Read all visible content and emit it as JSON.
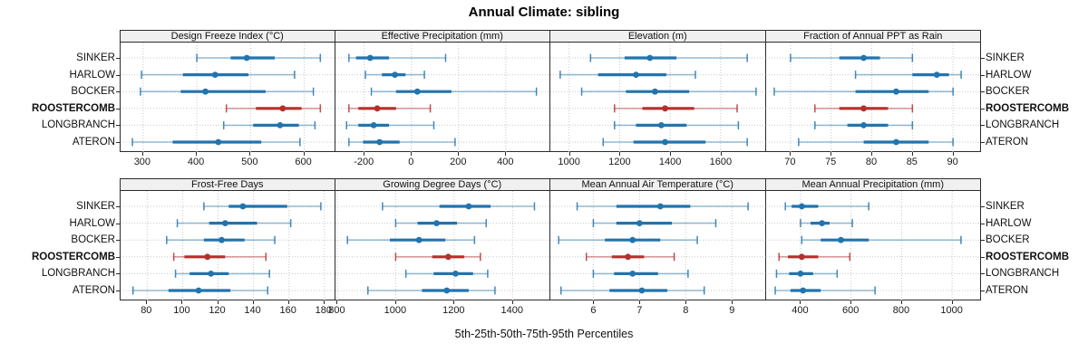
{
  "title": "Annual Climate: sibling",
  "caption": "5th-25th-50th-75th-95th Percentiles",
  "sites": [
    "SINKER",
    "HARLOW",
    "BOCKER",
    "ROOSTERCOMB",
    "LONGBRANCH",
    "ATERON"
  ],
  "highlight_site": "ROOSTERCOMB",
  "percentile_labels": [
    "5th",
    "25th",
    "50th",
    "75th",
    "95th"
  ],
  "colors": {
    "series": "#2274ad",
    "highlight": "#b5302d",
    "strip_bg": "#f0f0f0",
    "border": "#2b2b2b",
    "grid": "#c9c9c9",
    "tick_text": "#1a1a1a"
  },
  "chart_data": {
    "type": "dotplot-intervals",
    "note": "Each series entry is [5th,25th,50th,75th,95th] percentiles, rows ordered as sites[]",
    "legend_position": "none",
    "grid": "dotted",
    "panels": [
      {
        "row": 0,
        "col": 0,
        "title": "Design Freeze Index (°C)",
        "xlim": [
          258,
          659
        ],
        "ticks": [
          300,
          400,
          500,
          600
        ],
        "series": [
          [
            400,
            463,
            493,
            545,
            630
          ],
          [
            297,
            374,
            434,
            496,
            582
          ],
          [
            295,
            370,
            416,
            528,
            617
          ],
          [
            455,
            510,
            560,
            595,
            630
          ],
          [
            450,
            505,
            555,
            590,
            620
          ],
          [
            280,
            355,
            440,
            520,
            592
          ]
        ]
      },
      {
        "row": 0,
        "col": 1,
        "title": "Effective Precipitation (mm)",
        "xlim": [
          -322,
          591
        ],
        "ticks": [
          -200,
          0,
          200,
          400
        ],
        "series": [
          [
            -265,
            -235,
            -175,
            -95,
            145
          ],
          [
            -195,
            -125,
            -70,
            -25,
            55
          ],
          [
            -170,
            -65,
            25,
            170,
            530
          ],
          [
            -265,
            -225,
            -145,
            -65,
            80
          ],
          [
            -275,
            -225,
            -160,
            -95,
            95
          ],
          [
            -265,
            -205,
            -135,
            -50,
            185
          ]
        ]
      },
      {
        "row": 0,
        "col": 2,
        "title": "Elevation (m)",
        "xlim": [
          926,
          1778
        ],
        "ticks": [
          1000,
          1200,
          1400,
          1600
        ],
        "series": [
          [
            1085,
            1220,
            1320,
            1425,
            1705
          ],
          [
            965,
            1115,
            1265,
            1385,
            1500
          ],
          [
            1050,
            1225,
            1340,
            1475,
            1740
          ],
          [
            1180,
            1290,
            1380,
            1495,
            1665
          ],
          [
            1180,
            1265,
            1365,
            1465,
            1670
          ],
          [
            1135,
            1255,
            1380,
            1540,
            1705
          ]
        ]
      },
      {
        "row": 0,
        "col": 3,
        "title": "Fraction of Annual PPT as Rain",
        "xlim": [
          67,
          93.5
        ],
        "ticks": [
          70,
          75,
          80,
          85,
          90
        ],
        "series": [
          [
            70,
            76,
            79,
            81,
            85
          ],
          [
            78,
            85,
            88,
            89.5,
            91
          ],
          [
            68,
            78,
            83,
            87,
            90
          ],
          [
            73,
            76,
            79,
            82,
            85
          ],
          [
            73,
            77,
            79,
            82,
            85
          ],
          [
            71,
            79,
            83,
            87,
            90
          ]
        ]
      },
      {
        "row": 1,
        "col": 0,
        "title": "Frost-Free Days",
        "xlim": [
          65,
          186.5
        ],
        "ticks": [
          80,
          100,
          120,
          140,
          160,
          180
        ],
        "series": [
          [
            112,
            126,
            134,
            159,
            178
          ],
          [
            97,
            115,
            124,
            142,
            161
          ],
          [
            91,
            112,
            122,
            135,
            152
          ],
          [
            95,
            101,
            114,
            124,
            147
          ],
          [
            96,
            104,
            116,
            126,
            149
          ],
          [
            72,
            92,
            109,
            127,
            148
          ]
        ]
      },
      {
        "row": 1,
        "col": 1,
        "title": "Growing Degree Days (°C)",
        "xlim": [
          794,
          1531
        ],
        "ticks": [
          800,
          1000,
          1200,
          1400
        ],
        "series": [
          [
            955,
            1150,
            1250,
            1325,
            1475
          ],
          [
            1000,
            1075,
            1140,
            1210,
            1310
          ],
          [
            835,
            980,
            1080,
            1170,
            1270
          ],
          [
            1000,
            1125,
            1180,
            1235,
            1290
          ],
          [
            1035,
            1130,
            1205,
            1265,
            1315
          ],
          [
            905,
            1090,
            1175,
            1250,
            1340
          ]
        ]
      },
      {
        "row": 1,
        "col": 2,
        "title": "Mean Annual Air Temperature (°C)",
        "xlim": [
          5.07,
          9.73
        ],
        "ticks": [
          6,
          7,
          8,
          9
        ],
        "series": [
          [
            5.65,
            6.5,
            7.45,
            8.1,
            9.35
          ],
          [
            6.0,
            6.5,
            7.0,
            7.7,
            8.65
          ],
          [
            5.25,
            6.25,
            6.85,
            7.45,
            8.25
          ],
          [
            5.85,
            6.4,
            6.75,
            7.1,
            7.75
          ],
          [
            6.0,
            6.45,
            6.85,
            7.4,
            8.05
          ],
          [
            5.3,
            6.35,
            7.05,
            7.6,
            8.4
          ]
        ]
      },
      {
        "row": 1,
        "col": 3,
        "title": "Mean Annual Precipitation (mm)",
        "xlim": [
          264,
          1116
        ],
        "ticks": [
          400,
          600,
          800,
          1000
        ],
        "series": [
          [
            340,
            365,
            405,
            470,
            670
          ],
          [
            400,
            440,
            485,
            515,
            605
          ],
          [
            405,
            480,
            560,
            670,
            1035
          ],
          [
            315,
            350,
            405,
            470,
            595
          ],
          [
            305,
            355,
            400,
            450,
            545
          ],
          [
            300,
            360,
            410,
            480,
            695
          ]
        ]
      }
    ]
  }
}
